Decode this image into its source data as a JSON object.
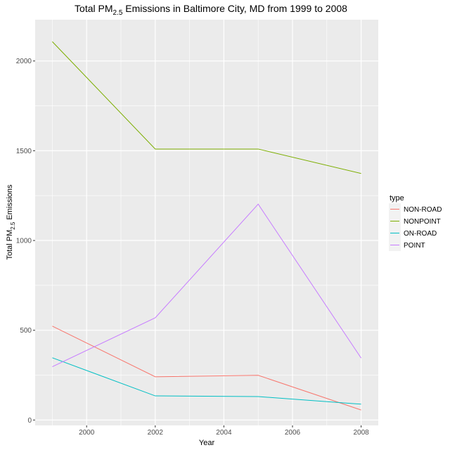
{
  "chart_data": {
    "type": "line",
    "title": {
      "main": "Total PM",
      "sub": "2.5",
      "rest": " Emissions in Baltimore City, MD from 1999 to 2008"
    },
    "xlabel": "Year",
    "ylabel": {
      "main": "Total PM",
      "sub": "2.5",
      "rest": " Emissions"
    },
    "x": [
      1999,
      2002,
      2005,
      2008
    ],
    "xlim": [
      1998.5,
      2008.5
    ],
    "ylim": [
      -30,
      2230
    ],
    "x_ticks": [
      2000,
      2002,
      2004,
      2006,
      2008
    ],
    "y_ticks": [
      0,
      500,
      1000,
      1500,
      2000
    ],
    "x_tick_labels": [
      "2000",
      "2002",
      "2004",
      "2006",
      "2008"
    ],
    "y_tick_labels": [
      "0",
      "500",
      "1000",
      "1500",
      "2000"
    ],
    "legend": {
      "title": "type",
      "position": "right"
    },
    "series": [
      {
        "name": "NON-ROAD",
        "color": "#F8766D",
        "values": [
          522.94,
          240.85,
          248.93,
          55.82
        ]
      },
      {
        "name": "NONPOINT",
        "color": "#7CAE00",
        "values": [
          2107.63,
          1509.5,
          1509.5,
          1373.21
        ]
      },
      {
        "name": "ON-ROAD",
        "color": "#00BFC4",
        "values": [
          346.82,
          134.31,
          130.43,
          88.28
        ]
      },
      {
        "name": "POINT",
        "color": "#C77CFF",
        "values": [
          296.8,
          569.26,
          1202.49,
          344.98
        ]
      }
    ]
  }
}
